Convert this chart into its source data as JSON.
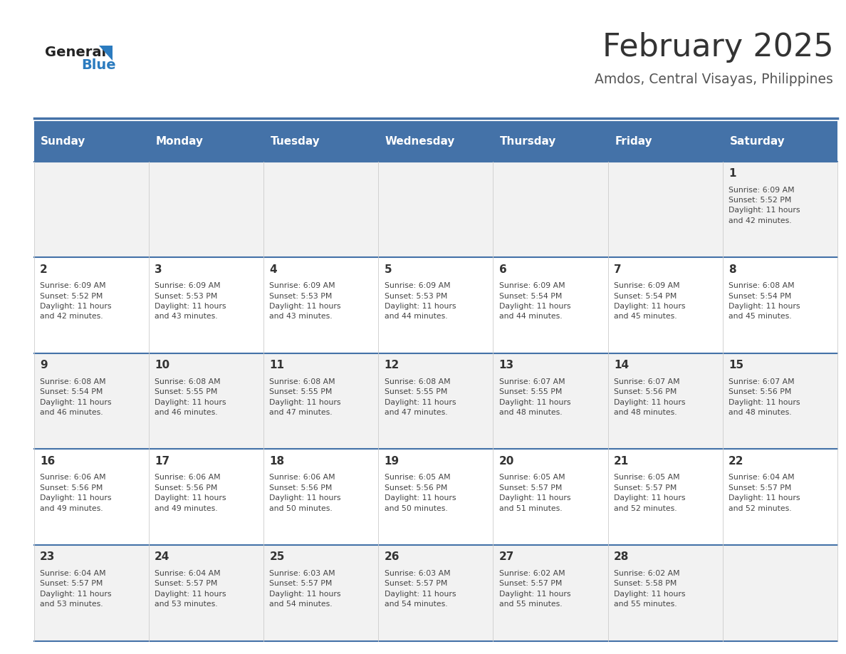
{
  "title": "February 2025",
  "subtitle": "Amdos, Central Visayas, Philippines",
  "days_of_week": [
    "Sunday",
    "Monday",
    "Tuesday",
    "Wednesday",
    "Thursday",
    "Friday",
    "Saturday"
  ],
  "header_bg": "#4472a8",
  "header_text": "#ffffff",
  "cell_bg_odd": "#f2f2f2",
  "cell_bg_even": "#ffffff",
  "separator_color": "#4472a8",
  "title_color": "#333333",
  "subtitle_color": "#555555",
  "day_num_color": "#333333",
  "info_color": "#444444",
  "logo_general_color": "#222222",
  "logo_blue_color": "#2b7bbf",
  "calendar_data": [
    [
      null,
      null,
      null,
      null,
      null,
      null,
      {
        "day": 1,
        "sunrise": "6:09 AM",
        "sunset": "5:52 PM",
        "daylight": "11 hours\nand 42 minutes."
      }
    ],
    [
      {
        "day": 2,
        "sunrise": "6:09 AM",
        "sunset": "5:52 PM",
        "daylight": "11 hours\nand 42 minutes."
      },
      {
        "day": 3,
        "sunrise": "6:09 AM",
        "sunset": "5:53 PM",
        "daylight": "11 hours\nand 43 minutes."
      },
      {
        "day": 4,
        "sunrise": "6:09 AM",
        "sunset": "5:53 PM",
        "daylight": "11 hours\nand 43 minutes."
      },
      {
        "day": 5,
        "sunrise": "6:09 AM",
        "sunset": "5:53 PM",
        "daylight": "11 hours\nand 44 minutes."
      },
      {
        "day": 6,
        "sunrise": "6:09 AM",
        "sunset": "5:54 PM",
        "daylight": "11 hours\nand 44 minutes."
      },
      {
        "day": 7,
        "sunrise": "6:09 AM",
        "sunset": "5:54 PM",
        "daylight": "11 hours\nand 45 minutes."
      },
      {
        "day": 8,
        "sunrise": "6:08 AM",
        "sunset": "5:54 PM",
        "daylight": "11 hours\nand 45 minutes."
      }
    ],
    [
      {
        "day": 9,
        "sunrise": "6:08 AM",
        "sunset": "5:54 PM",
        "daylight": "11 hours\nand 46 minutes."
      },
      {
        "day": 10,
        "sunrise": "6:08 AM",
        "sunset": "5:55 PM",
        "daylight": "11 hours\nand 46 minutes."
      },
      {
        "day": 11,
        "sunrise": "6:08 AM",
        "sunset": "5:55 PM",
        "daylight": "11 hours\nand 47 minutes."
      },
      {
        "day": 12,
        "sunrise": "6:08 AM",
        "sunset": "5:55 PM",
        "daylight": "11 hours\nand 47 minutes."
      },
      {
        "day": 13,
        "sunrise": "6:07 AM",
        "sunset": "5:55 PM",
        "daylight": "11 hours\nand 48 minutes."
      },
      {
        "day": 14,
        "sunrise": "6:07 AM",
        "sunset": "5:56 PM",
        "daylight": "11 hours\nand 48 minutes."
      },
      {
        "day": 15,
        "sunrise": "6:07 AM",
        "sunset": "5:56 PM",
        "daylight": "11 hours\nand 48 minutes."
      }
    ],
    [
      {
        "day": 16,
        "sunrise": "6:06 AM",
        "sunset": "5:56 PM",
        "daylight": "11 hours\nand 49 minutes."
      },
      {
        "day": 17,
        "sunrise": "6:06 AM",
        "sunset": "5:56 PM",
        "daylight": "11 hours\nand 49 minutes."
      },
      {
        "day": 18,
        "sunrise": "6:06 AM",
        "sunset": "5:56 PM",
        "daylight": "11 hours\nand 50 minutes."
      },
      {
        "day": 19,
        "sunrise": "6:05 AM",
        "sunset": "5:56 PM",
        "daylight": "11 hours\nand 50 minutes."
      },
      {
        "day": 20,
        "sunrise": "6:05 AM",
        "sunset": "5:57 PM",
        "daylight": "11 hours\nand 51 minutes."
      },
      {
        "day": 21,
        "sunrise": "6:05 AM",
        "sunset": "5:57 PM",
        "daylight": "11 hours\nand 52 minutes."
      },
      {
        "day": 22,
        "sunrise": "6:04 AM",
        "sunset": "5:57 PM",
        "daylight": "11 hours\nand 52 minutes."
      }
    ],
    [
      {
        "day": 23,
        "sunrise": "6:04 AM",
        "sunset": "5:57 PM",
        "daylight": "11 hours\nand 53 minutes."
      },
      {
        "day": 24,
        "sunrise": "6:04 AM",
        "sunset": "5:57 PM",
        "daylight": "11 hours\nand 53 minutes."
      },
      {
        "day": 25,
        "sunrise": "6:03 AM",
        "sunset": "5:57 PM",
        "daylight": "11 hours\nand 54 minutes."
      },
      {
        "day": 26,
        "sunrise": "6:03 AM",
        "sunset": "5:57 PM",
        "daylight": "11 hours\nand 54 minutes."
      },
      {
        "day": 27,
        "sunrise": "6:02 AM",
        "sunset": "5:57 PM",
        "daylight": "11 hours\nand 55 minutes."
      },
      {
        "day": 28,
        "sunrise": "6:02 AM",
        "sunset": "5:58 PM",
        "daylight": "11 hours\nand 55 minutes."
      },
      null
    ]
  ]
}
